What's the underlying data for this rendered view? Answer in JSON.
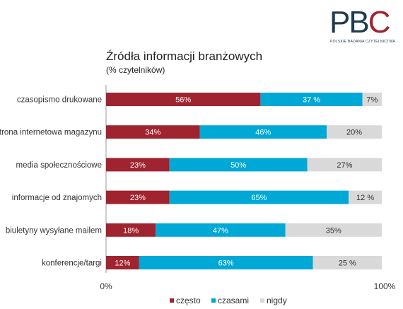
{
  "logo": {
    "letters": [
      "P",
      "B",
      "C"
    ],
    "subtitle": "POLSKIE BADANIA CZYTELNICTWA",
    "colors": {
      "dark": "#1f3b4d",
      "accent": "#a0242f"
    }
  },
  "chart_data": {
    "type": "bar",
    "orientation": "horizontal",
    "stacked": true,
    "title": "Źródła informacji branżowych",
    "subtitle": "(% czytelników)",
    "categories": [
      "czasopismo drukowane",
      "strona internetowa magazynu",
      "media społecznościowe",
      "informacje od znajomych",
      "biuletyny wysyłane mailem",
      "konferencje/targi"
    ],
    "series": [
      {
        "name": "często",
        "color": "#a0242f",
        "values": [
          56,
          34,
          23,
          23,
          18,
          12
        ],
        "labels": [
          "56%",
          "34%",
          "23%",
          "23%",
          "18%",
          "12%"
        ]
      },
      {
        "name": "czasami",
        "color": "#00a8d6",
        "values": [
          37,
          46,
          50,
          65,
          47,
          63
        ],
        "labels": [
          "37 %",
          "46%",
          "50%",
          "65%",
          "47%",
          "63%"
        ]
      },
      {
        "name": "nigdy",
        "color": "#d9d9d9",
        "values": [
          7,
          20,
          27,
          12,
          35,
          25
        ],
        "labels": [
          "7%",
          "20%",
          "27%",
          "12 %",
          "35%",
          "25 %"
        ]
      }
    ],
    "xlim": [
      0,
      100
    ],
    "x_ticks": [
      "0%",
      "100%"
    ],
    "legend_position": "bottom",
    "grid": false
  }
}
